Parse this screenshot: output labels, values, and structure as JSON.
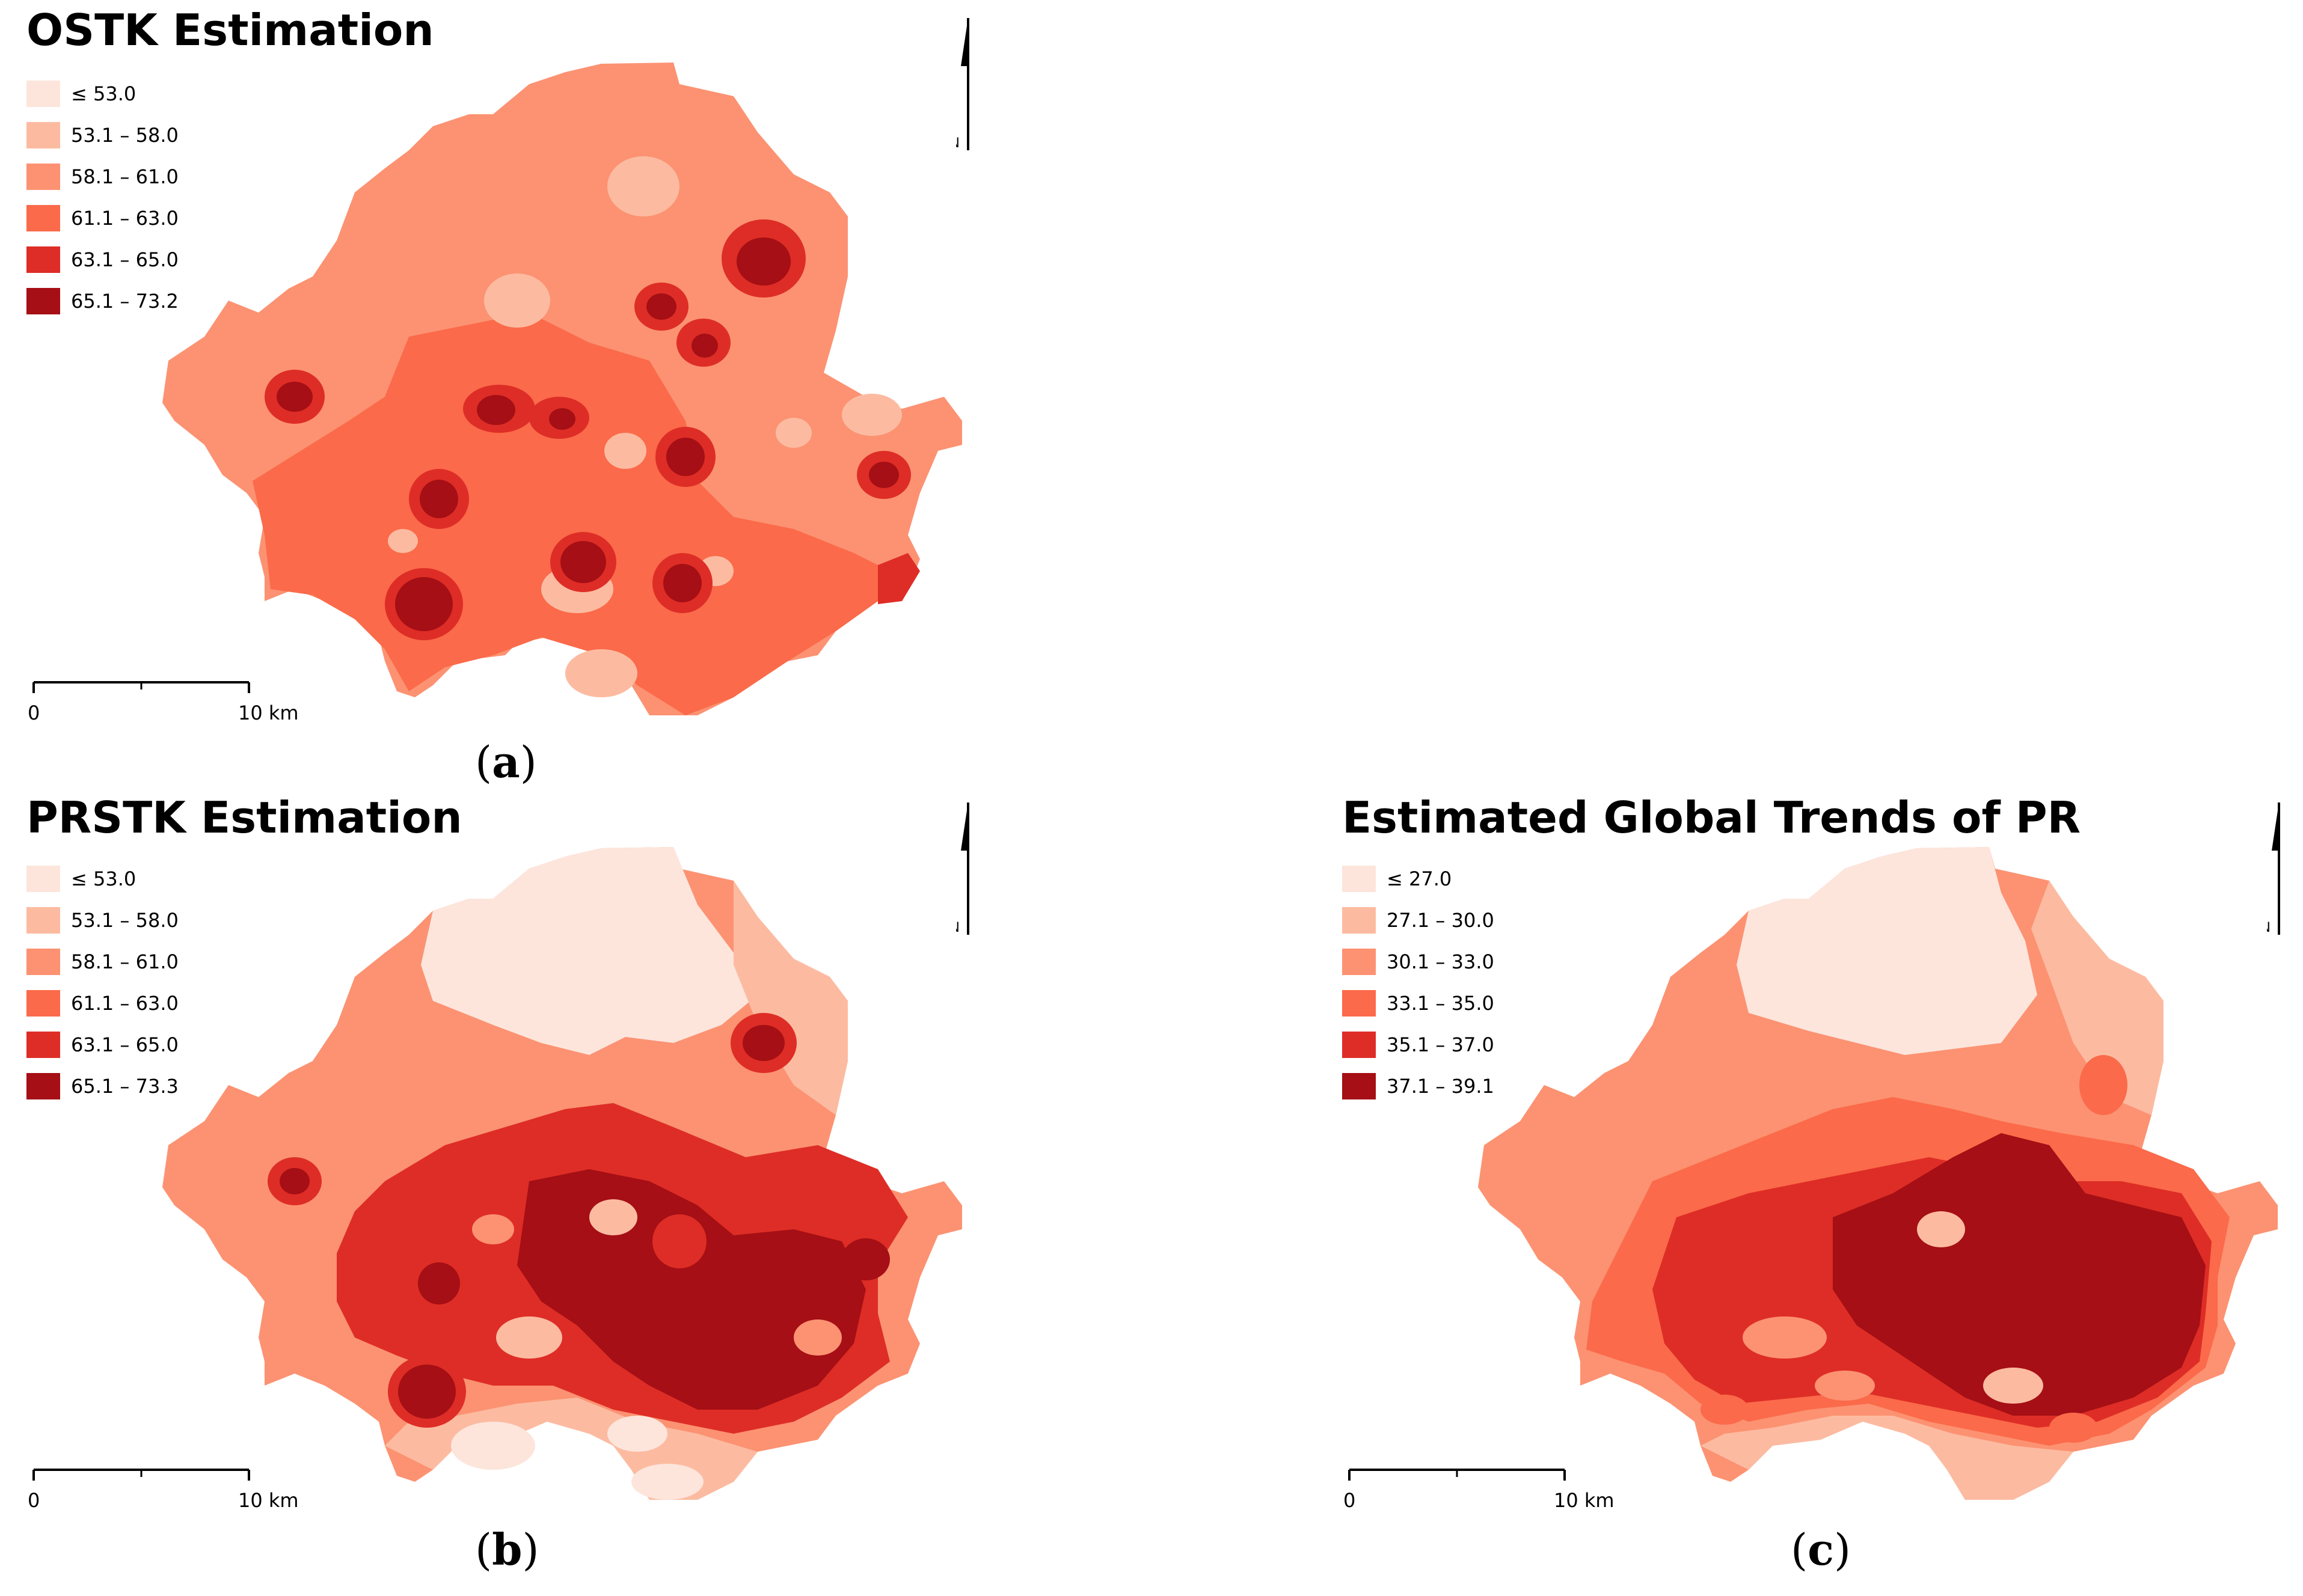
{
  "panels": [
    {
      "id": "a",
      "title": "OSTK Estimation",
      "caption_letter": "a",
      "legend": [
        {
          "label": "≤ 53.0",
          "color": "#fde5dc"
        },
        {
          "label": "53.1 – 58.0",
          "color": "#fcbba1"
        },
        {
          "label": "58.1 – 61.0",
          "color": "#fc9272"
        },
        {
          "label": "61.1 – 63.0",
          "color": "#fb6a4a"
        },
        {
          "label": "63.1 – 65.0",
          "color": "#de2d26"
        },
        {
          "label": "65.1 – 73.2",
          "color": "#a50f15"
        }
      ],
      "scale": {
        "zero": "0",
        "end": "10 km"
      },
      "north": "N"
    },
    {
      "id": "b",
      "title": "PRSTK Estimation",
      "caption_letter": "b",
      "legend": [
        {
          "label": "≤ 53.0",
          "color": "#fde5dc"
        },
        {
          "label": "53.1 – 58.0",
          "color": "#fcbba1"
        },
        {
          "label": "58.1 – 61.0",
          "color": "#fc9272"
        },
        {
          "label": "61.1 – 63.0",
          "color": "#fb6a4a"
        },
        {
          "label": "63.1 – 65.0",
          "color": "#de2d26"
        },
        {
          "label": "65.1 – 73.3",
          "color": "#a50f15"
        }
      ],
      "scale": {
        "zero": "0",
        "end": "10 km"
      },
      "north": "N"
    },
    {
      "id": "c",
      "title": "Estimated Global Trends of PR",
      "caption_letter": "c",
      "legend": [
        {
          "label": "≤ 27.0",
          "color": "#fde5dc"
        },
        {
          "label": "27.1 – 30.0",
          "color": "#fcbba1"
        },
        {
          "label": "30.1 – 33.0",
          "color": "#fc9272"
        },
        {
          "label": "33.1 – 35.0",
          "color": "#fb6a4a"
        },
        {
          "label": "35.1 – 37.0",
          "color": "#de2d26"
        },
        {
          "label": "37.1 – 39.1",
          "color": "#a50f15"
        }
      ],
      "scale": {
        "zero": "0",
        "end": "10 km"
      },
      "north": "N"
    }
  ]
}
